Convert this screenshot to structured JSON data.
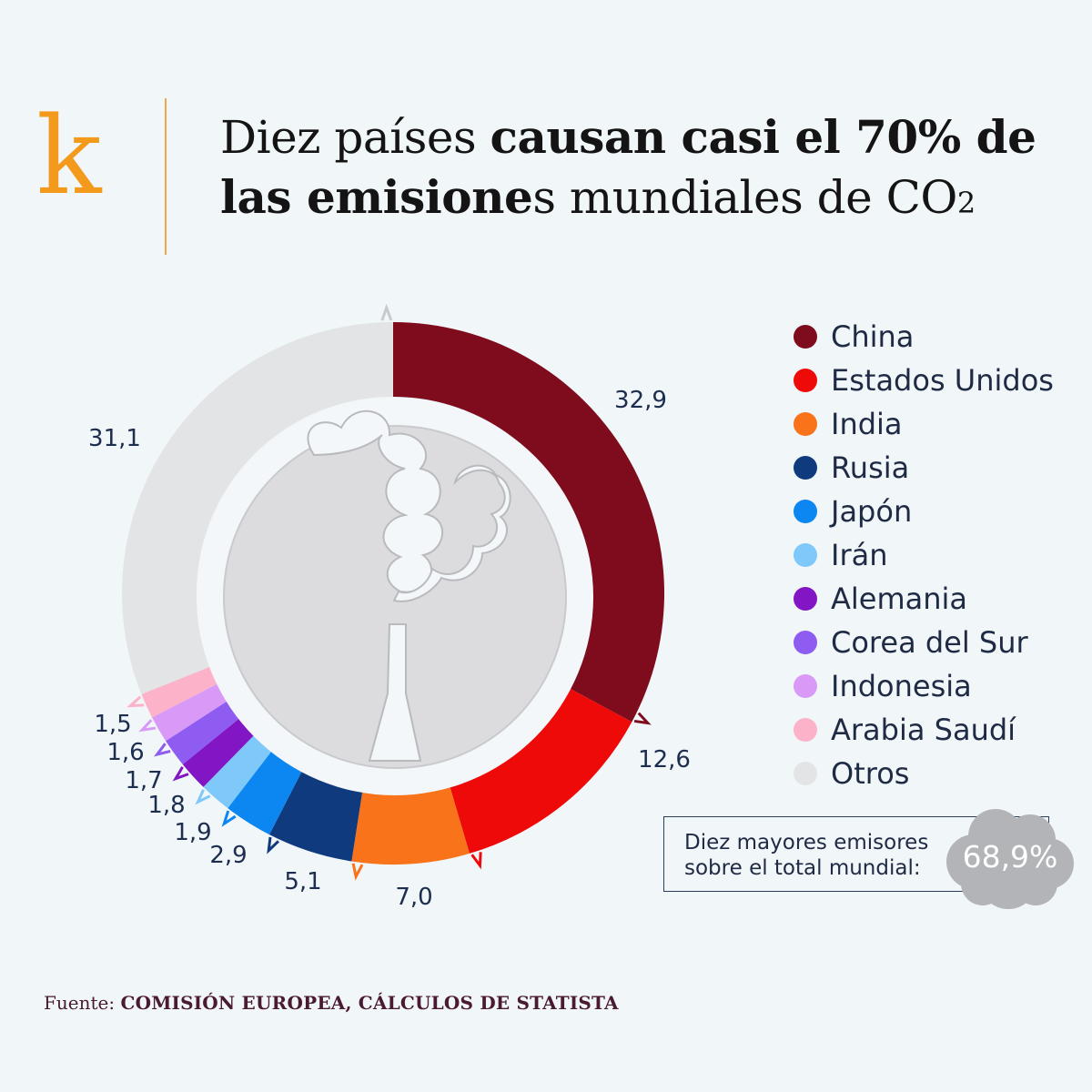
{
  "brand": {
    "logo_letter": "k"
  },
  "title": {
    "part1": "Diez países ",
    "bold1": "causan casi el 70% de las emisione",
    "part2": "s mundiales de CO",
    "sub": "2"
  },
  "chart_data": {
    "type": "pie",
    "variant": "donut",
    "title": "Diez países causan casi el 70% de las emisiones mundiales de CO2",
    "unit": "%",
    "categories": [
      "China",
      "Estados Unidos",
      "India",
      "Rusia",
      "Japón",
      "Irán",
      "Alemania",
      "Corea del Sur",
      "Indonesia",
      "Arabia Saudí",
      "Otros"
    ],
    "values": [
      32.9,
      12.6,
      7.0,
      5.1,
      2.9,
      1.9,
      1.8,
      1.7,
      1.6,
      1.5,
      31.1
    ],
    "value_labels": [
      "32,9",
      "12,6",
      "7,0",
      "5,1",
      "2,9",
      "1,9",
      "1,8",
      "1,7",
      "1,6",
      "1,5",
      "31,1"
    ],
    "colors": [
      "#7e0c1d",
      "#ef0a0a",
      "#f87319",
      "#0f3a7e",
      "#0c86f0",
      "#7ec8fa",
      "#8316c4",
      "#8f5cf2",
      "#d99af7",
      "#fcb2c8",
      "#e3e4e6"
    ],
    "legend_position": "right"
  },
  "summary": {
    "label_line1": "Diez mayores emisores",
    "label_line2": "sobre el total mundial:",
    "value": "68,9%"
  },
  "source": {
    "prefix": "Fuente: ",
    "text": "COMISIÓN EUROPEA, CÁLCULOS DE STATISTA"
  }
}
